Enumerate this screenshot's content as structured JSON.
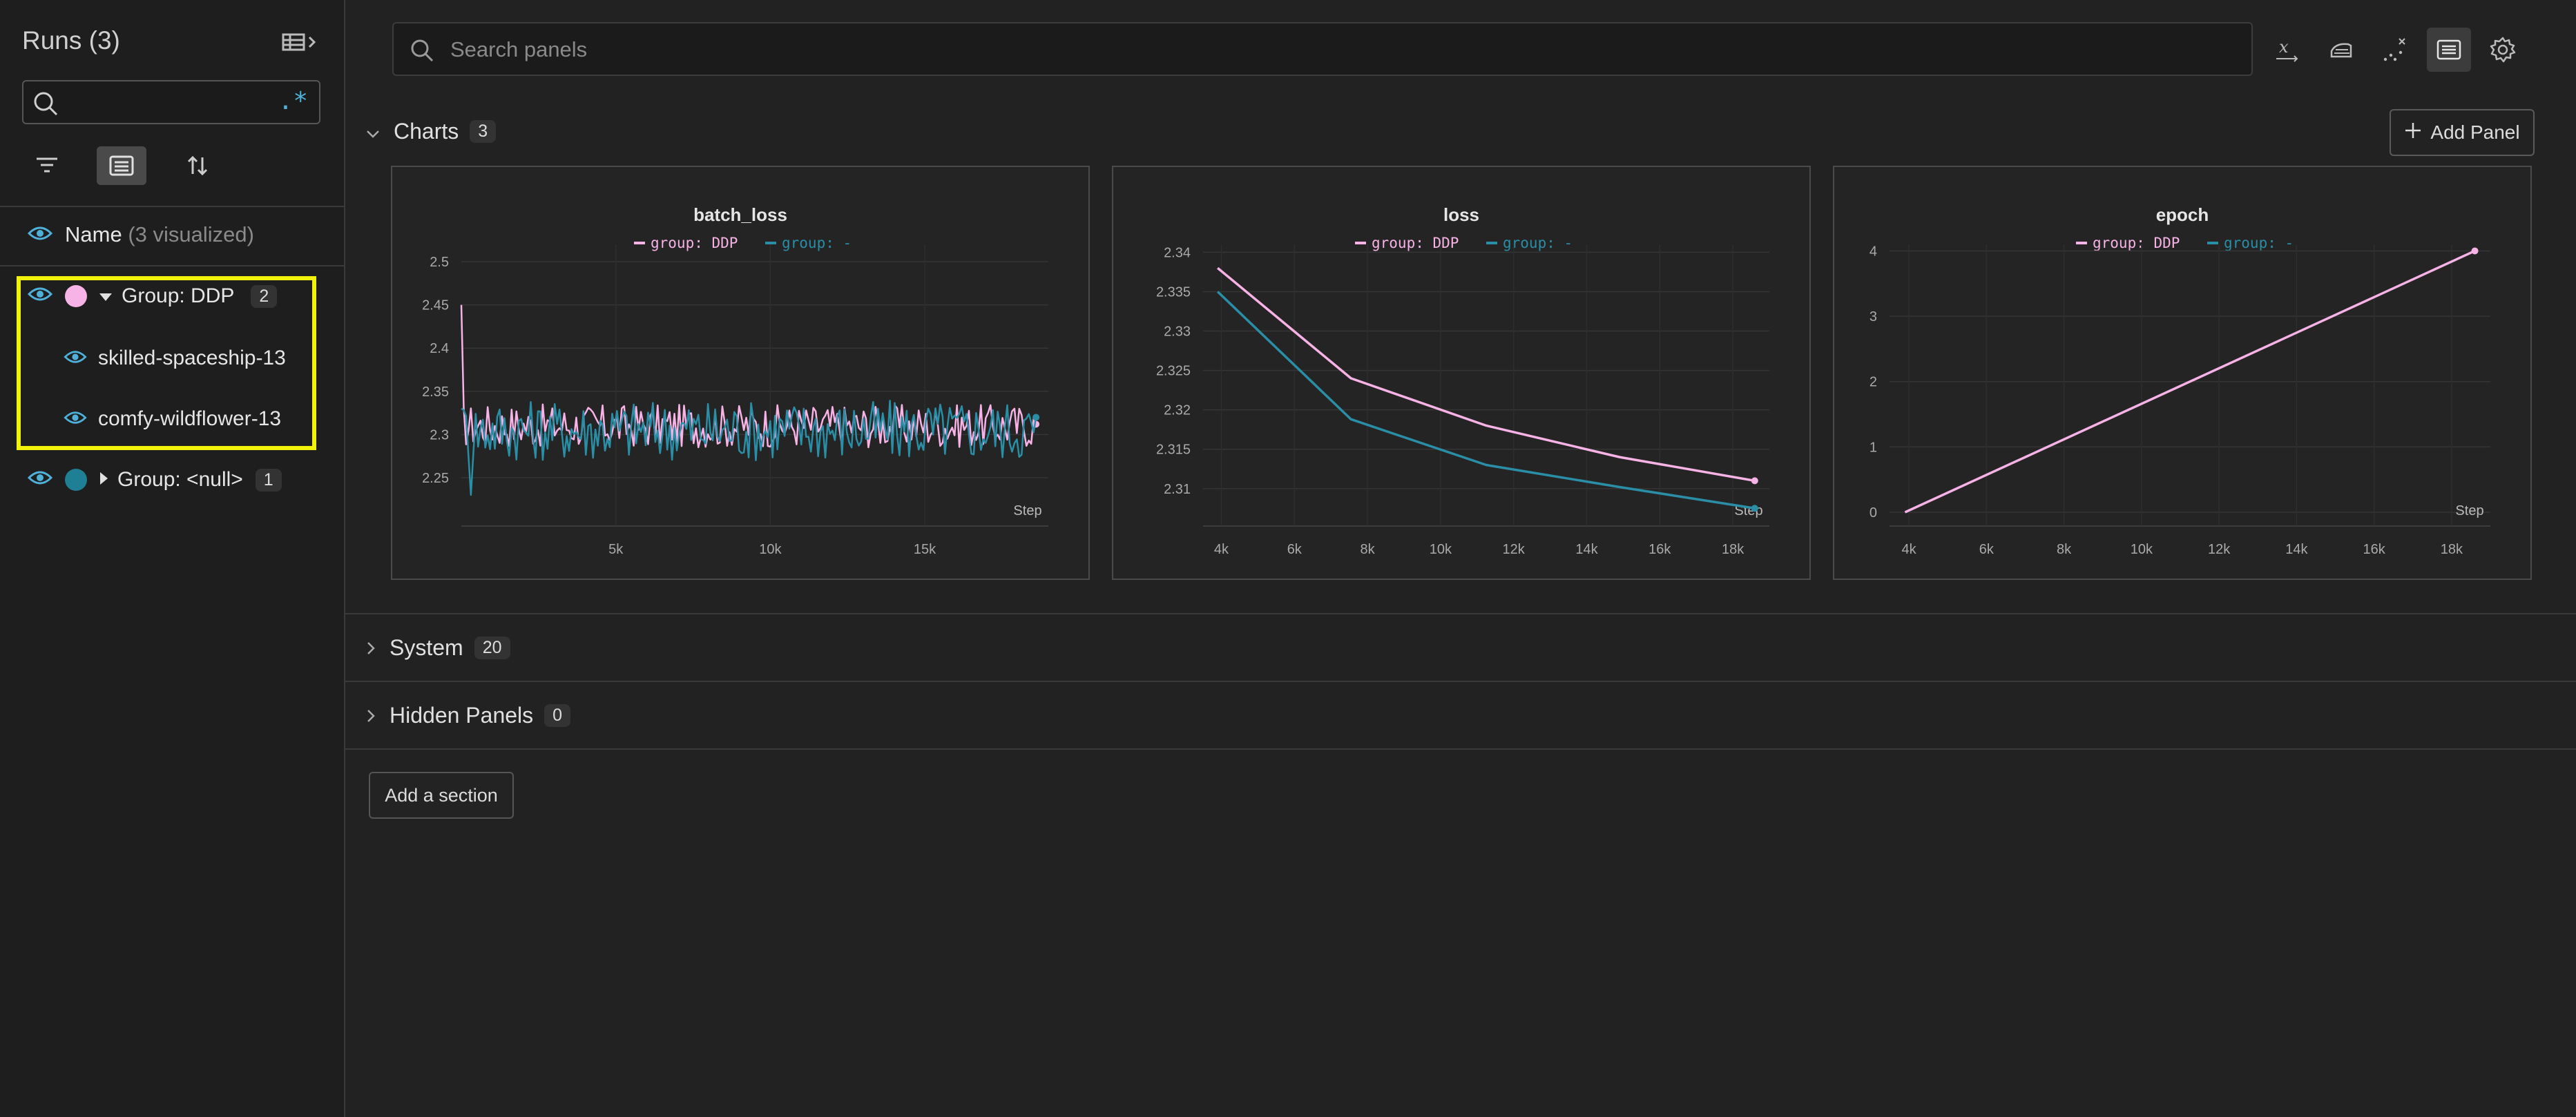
{
  "sidebar": {
    "title": "Runs (3)",
    "search": {
      "value": "",
      "placeholder": "",
      "regex_label": ".*"
    },
    "name_header": {
      "label": "Name",
      "visualized": "(3 visualized)"
    },
    "groups": [
      {
        "label": "Group: DDP",
        "count": "2",
        "color": "#f5a8e0",
        "expanded": true,
        "runs": [
          {
            "name": "skilled-spaceship-13"
          },
          {
            "name": "comfy-wildflower-13"
          }
        ]
      },
      {
        "label": "Group: <null>",
        "count": "1",
        "color": "#1f7f94",
        "expanded": false,
        "runs": []
      }
    ]
  },
  "header": {
    "search_placeholder": "Search panels"
  },
  "sections": {
    "charts": {
      "label": "Charts",
      "count": "3",
      "add_panel": "Add Panel"
    },
    "system": {
      "label": "System",
      "count": "20"
    },
    "hidden": {
      "label": "Hidden Panels",
      "count": "0"
    },
    "add_section": "Add a section"
  },
  "colors": {
    "ddp": "#f7b2e6",
    "null_group": "#2a8ea6",
    "highlight": "#f2f20a"
  },
  "chart_data": [
    {
      "type": "line",
      "title": "batch_loss",
      "xlabel": "Step",
      "legend": [
        "group: DDP",
        "group: -"
      ],
      "x_ticks": [
        "5k",
        "10k",
        "15k"
      ],
      "x_tick_values": [
        5000,
        10000,
        15000
      ],
      "y_ticks": [
        "2.25",
        "2.3",
        "2.35",
        "2.4",
        "2.45",
        "2.5"
      ],
      "y_tick_values": [
        2.25,
        2.3,
        2.35,
        2.4,
        2.45,
        2.5
      ],
      "xlim": [
        0,
        19000
      ],
      "ylim": [
        2.21,
        2.52
      ],
      "series": [
        {
          "name": "group: DDP",
          "color": "#f7b2e6",
          "noisy": true,
          "x_start": 0,
          "x_end": 18600,
          "center": 2.31,
          "amplitude": 0.025
        },
        {
          "name": "group: -",
          "color": "#2a8ea6",
          "noisy": true,
          "x_start": 0,
          "x_end": 18600,
          "center": 2.305,
          "amplitude": 0.035
        }
      ]
    },
    {
      "type": "line",
      "title": "loss",
      "xlabel": "Step",
      "legend": [
        "group: DDP",
        "group: -"
      ],
      "x_ticks": [
        "4k",
        "6k",
        "8k",
        "10k",
        "12k",
        "14k",
        "16k",
        "18k"
      ],
      "x_tick_values": [
        4000,
        6000,
        8000,
        10000,
        12000,
        14000,
        16000,
        18000
      ],
      "y_ticks": [
        "2.31",
        "2.315",
        "2.32",
        "2.325",
        "2.33",
        "2.335",
        "2.34"
      ],
      "y_tick_values": [
        2.31,
        2.315,
        2.32,
        2.325,
        2.33,
        2.335,
        2.34
      ],
      "xlim": [
        3500,
        19000
      ],
      "ylim": [
        2.307,
        2.341
      ],
      "series": [
        {
          "name": "group: DDP",
          "color": "#f7b2e6",
          "x": [
            3900,
            7550,
            11250,
            14900,
            18600
          ],
          "y": [
            2.338,
            2.324,
            2.318,
            2.314,
            2.311
          ]
        },
        {
          "name": "group: -",
          "color": "#2a8ea6",
          "x": [
            3900,
            7550,
            11250,
            14900,
            18600
          ],
          "y": [
            2.335,
            2.3188,
            2.313,
            2.3102,
            2.3075
          ]
        }
      ]
    },
    {
      "type": "line",
      "title": "epoch",
      "xlabel": "Step",
      "legend": [
        "group: DDP",
        "group: -"
      ],
      "x_ticks": [
        "4k",
        "6k",
        "8k",
        "10k",
        "12k",
        "14k",
        "16k",
        "18k"
      ],
      "x_tick_values": [
        4000,
        6000,
        8000,
        10000,
        12000,
        14000,
        16000,
        18000
      ],
      "y_ticks": [
        "0",
        "1",
        "2",
        "3",
        "4"
      ],
      "y_tick_values": [
        0,
        1,
        2,
        3,
        4
      ],
      "xlim": [
        3500,
        19000
      ],
      "ylim": [
        0,
        4.1
      ],
      "series": [
        {
          "name": "group: DDP",
          "color": "#f7b2e6",
          "x": [
            3900,
            18600
          ],
          "y": [
            0,
            4
          ]
        }
      ]
    }
  ]
}
